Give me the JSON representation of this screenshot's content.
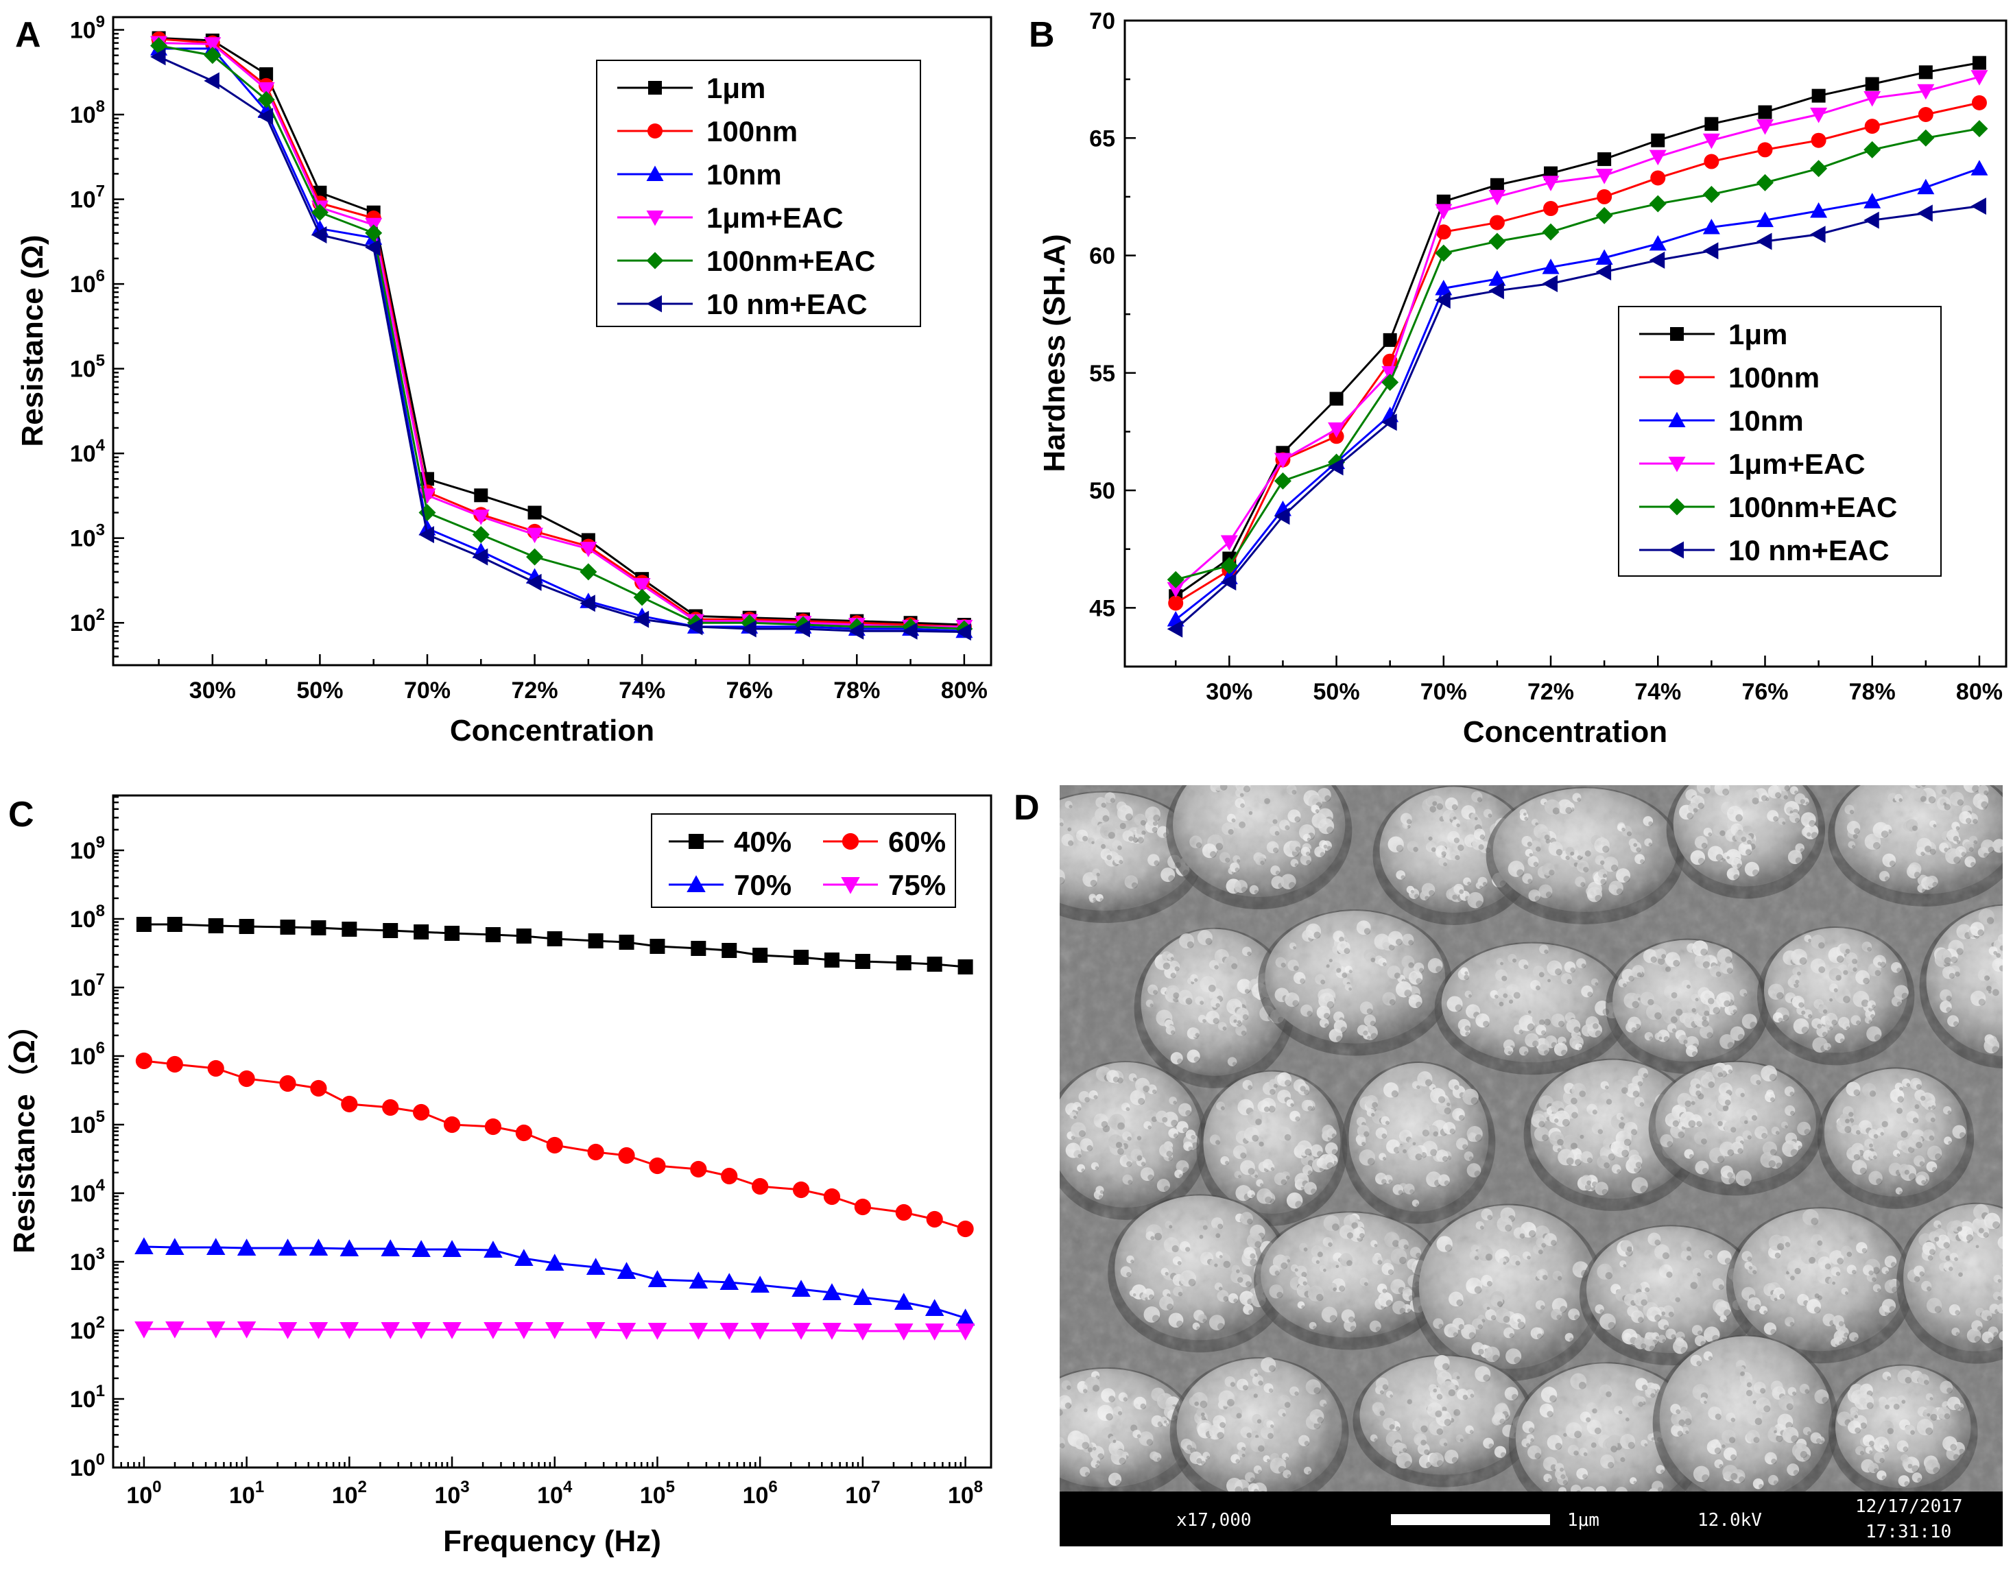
{
  "panels": {
    "a": "A",
    "b": "B",
    "c": "C",
    "d": "D"
  },
  "sem": {
    "magnification": "x17,000",
    "scale_label": "1μm",
    "voltage": "12.0kV",
    "date": "12/17/2017",
    "time": "17:31:10"
  },
  "chart_data": [
    {
      "id": "A",
      "type": "line",
      "yscale": "log",
      "title": "",
      "xlabel": "Concentration",
      "ylabel": "Resistance (Ω)",
      "x_tick_labels": [
        "30%",
        "50%",
        "70%",
        "72%",
        "74%",
        "76%",
        "78%",
        "80%"
      ],
      "x_tick_positions": [
        1,
        3,
        5,
        7,
        9,
        11,
        13,
        15
      ],
      "x": [
        0,
        1,
        2,
        3,
        4,
        5,
        6,
        7,
        8,
        9,
        10,
        11,
        12,
        13,
        14,
        15
      ],
      "xlim": [
        -0.85,
        15.5
      ],
      "ylim_exp": [
        1.5,
        9.15
      ],
      "y_ticks_exp": [
        2,
        3,
        4,
        5,
        6,
        7,
        8,
        9
      ],
      "y_tick_labels": [
        "10²",
        "10³",
        "10⁴",
        "10⁵",
        "10⁶",
        "10⁷",
        "10⁸",
        "10⁹"
      ],
      "legend_position": "top-right",
      "series": [
        {
          "name": "1μm",
          "color": "#000000",
          "marker": "square",
          "values": [
            800000000,
            750000000,
            300000000,
            12000000,
            7000000,
            5000,
            3200,
            2000,
            950,
            330,
            120,
            115,
            110,
            105,
            100,
            95
          ]
        },
        {
          "name": "100nm",
          "color": "#ff0000",
          "marker": "circle",
          "values": [
            780000000,
            700000000,
            220000000,
            9000000,
            6000000,
            3500,
            1900,
            1200,
            800,
            300,
            110,
            110,
            105,
            100,
            95,
            90
          ]
        },
        {
          "name": "10nm",
          "color": "#0000ff",
          "marker": "triangle-up",
          "values": [
            600000000,
            600000000,
            110000000,
            4500000,
            3500000,
            1300,
            700,
            350,
            180,
            120,
            90,
            90,
            90,
            85,
            85,
            80
          ]
        },
        {
          "name": "1μm+EAC",
          "color": "#ff00ff",
          "marker": "triangle-down",
          "values": [
            700000000,
            680000000,
            200000000,
            8000000,
            5000000,
            3200,
            1800,
            1100,
            750,
            280,
            105,
            105,
            100,
            95,
            90,
            90
          ]
        },
        {
          "name": "100nm+EAC",
          "color": "#008000",
          "marker": "diamond",
          "values": [
            650000000,
            500000000,
            150000000,
            7000000,
            4000000,
            2000,
            1100,
            600,
            400,
            200,
            100,
            100,
            95,
            90,
            90,
            85
          ]
        },
        {
          "name": "10 nm+EAC",
          "color": "#00008b",
          "marker": "triangle-left",
          "values": [
            480000000,
            250000000,
            95000000,
            3800000,
            2700000,
            1100,
            600,
            300,
            170,
            110,
            90,
            85,
            85,
            80,
            80,
            78
          ]
        }
      ]
    },
    {
      "id": "B",
      "type": "line",
      "yscale": "linear",
      "title": "",
      "xlabel": "Concentration",
      "ylabel": "Hardness (SH.A)",
      "x_tick_labels": [
        "30%",
        "50%",
        "70%",
        "72%",
        "74%",
        "76%",
        "78%",
        "80%"
      ],
      "x_tick_positions": [
        1,
        3,
        5,
        7,
        9,
        11,
        13,
        15
      ],
      "x": [
        0,
        1,
        2,
        3,
        4,
        5,
        6,
        7,
        8,
        9,
        10,
        11,
        12,
        13,
        14,
        15
      ],
      "xlim": [
        -0.95,
        15.5
      ],
      "ylim": [
        42.5,
        70
      ],
      "y_ticks": [
        45,
        50,
        55,
        60,
        65,
        70
      ],
      "y_tick_labels": [
        "45",
        "50",
        "55",
        "60",
        "65",
        "70"
      ],
      "legend_position": "bottom-right",
      "series": [
        {
          "name": "1μm",
          "color": "#000000",
          "marker": "square",
          "values": [
            45.5,
            47.1,
            51.6,
            53.9,
            56.4,
            62.3,
            63.0,
            63.5,
            64.1,
            64.9,
            65.6,
            66.1,
            66.8,
            67.3,
            67.8,
            68.2
          ]
        },
        {
          "name": "100nm",
          "color": "#ff0000",
          "marker": "circle",
          "values": [
            45.2,
            46.6,
            51.3,
            52.3,
            55.5,
            61.0,
            61.4,
            62.0,
            62.5,
            63.3,
            64.0,
            64.5,
            64.9,
            65.5,
            66.0,
            66.5
          ]
        },
        {
          "name": "10nm",
          "color": "#0000ff",
          "marker": "triangle-up",
          "values": [
            44.5,
            46.3,
            49.2,
            51.2,
            53.2,
            58.6,
            59.0,
            59.5,
            59.9,
            60.5,
            61.2,
            61.5,
            61.9,
            62.3,
            62.9,
            63.7
          ]
        },
        {
          "name": "1μm+EAC",
          "color": "#ff00ff",
          "marker": "triangle-down",
          "values": [
            45.8,
            47.8,
            51.3,
            52.6,
            55.0,
            61.9,
            62.5,
            63.1,
            63.4,
            64.2,
            64.9,
            65.5,
            66.0,
            66.7,
            67.0,
            67.6
          ]
        },
        {
          "name": "100nm+EAC",
          "color": "#008000",
          "marker": "diamond",
          "values": [
            46.2,
            46.8,
            50.4,
            51.2,
            54.6,
            60.1,
            60.6,
            61.0,
            61.7,
            62.2,
            62.6,
            63.1,
            63.7,
            64.5,
            65.0,
            65.4
          ]
        },
        {
          "name": "10 nm+EAC",
          "color": "#00008b",
          "marker": "triangle-left",
          "values": [
            44.1,
            46.1,
            48.9,
            51.0,
            52.9,
            58.1,
            58.5,
            58.8,
            59.3,
            59.8,
            60.2,
            60.6,
            60.9,
            61.5,
            61.8,
            62.1
          ]
        }
      ]
    },
    {
      "id": "C",
      "type": "line",
      "yscale": "log",
      "xscale": "log",
      "title": "",
      "xlabel": "Frequency (Hz)",
      "ylabel": "Resistance（Ω）",
      "xlim_exp": [
        -0.3,
        8.25
      ],
      "x_ticks_exp": [
        0,
        1,
        2,
        3,
        4,
        5,
        6,
        7,
        8
      ],
      "x_tick_labels": [
        "10⁰",
        "10¹",
        "10²",
        "10³",
        "10⁴",
        "10⁵",
        "10⁶",
        "10⁷",
        "10⁸"
      ],
      "ylim_exp": [
        0,
        9.8
      ],
      "y_ticks_exp": [
        0,
        1,
        2,
        3,
        4,
        5,
        6,
        7,
        8,
        9
      ],
      "y_tick_labels": [
        "10⁰",
        "10¹",
        "10²",
        "10³",
        "10⁴",
        "10⁵",
        "10⁶",
        "10⁷",
        "10⁸",
        "10⁹"
      ],
      "legend_position": "top-right",
      "x_exp": [
        0,
        0.3,
        0.7,
        1,
        1.4,
        1.7,
        2,
        2.4,
        2.7,
        3,
        3.4,
        3.7,
        4,
        4.4,
        4.7,
        5,
        5.4,
        5.7,
        6,
        6.4,
        6.7,
        7,
        7.4,
        7.7,
        8
      ],
      "series": [
        {
          "name": "40%",
          "color": "#000000",
          "marker": "square",
          "values_exp": [
            7.92,
            7.92,
            7.9,
            7.89,
            7.88,
            7.87,
            7.85,
            7.83,
            7.81,
            7.79,
            7.77,
            7.75,
            7.71,
            7.68,
            7.66,
            7.6,
            7.57,
            7.54,
            7.47,
            7.44,
            7.4,
            7.38,
            7.36,
            7.34,
            7.3
          ]
        },
        {
          "name": "60%",
          "color": "#ff0000",
          "marker": "circle",
          "values_exp": [
            5.93,
            5.88,
            5.82,
            5.67,
            5.6,
            5.53,
            5.3,
            5.25,
            5.18,
            5.0,
            4.97,
            4.88,
            4.7,
            4.6,
            4.55,
            4.4,
            4.35,
            4.25,
            4.1,
            4.05,
            3.95,
            3.8,
            3.72,
            3.62,
            3.48
          ]
        },
        {
          "name": "70%",
          "color": "#0000ff",
          "marker": "triangle-up",
          "values_exp": [
            3.22,
            3.21,
            3.21,
            3.2,
            3.2,
            3.2,
            3.19,
            3.19,
            3.18,
            3.18,
            3.17,
            3.05,
            2.98,
            2.92,
            2.86,
            2.74,
            2.72,
            2.7,
            2.66,
            2.6,
            2.55,
            2.48,
            2.41,
            2.32,
            2.18
          ]
        },
        {
          "name": "75%",
          "color": "#ff00ff",
          "marker": "triangle-down",
          "values_exp": [
            2.02,
            2.02,
            2.02,
            2.02,
            2.01,
            2.01,
            2.01,
            2.01,
            2.01,
            2.01,
            2.01,
            2.01,
            2.01,
            2.01,
            2.0,
            2.0,
            2.0,
            2.0,
            2.0,
            2.0,
            2.0,
            1.99,
            1.99,
            1.99,
            1.99
          ]
        }
      ]
    }
  ]
}
